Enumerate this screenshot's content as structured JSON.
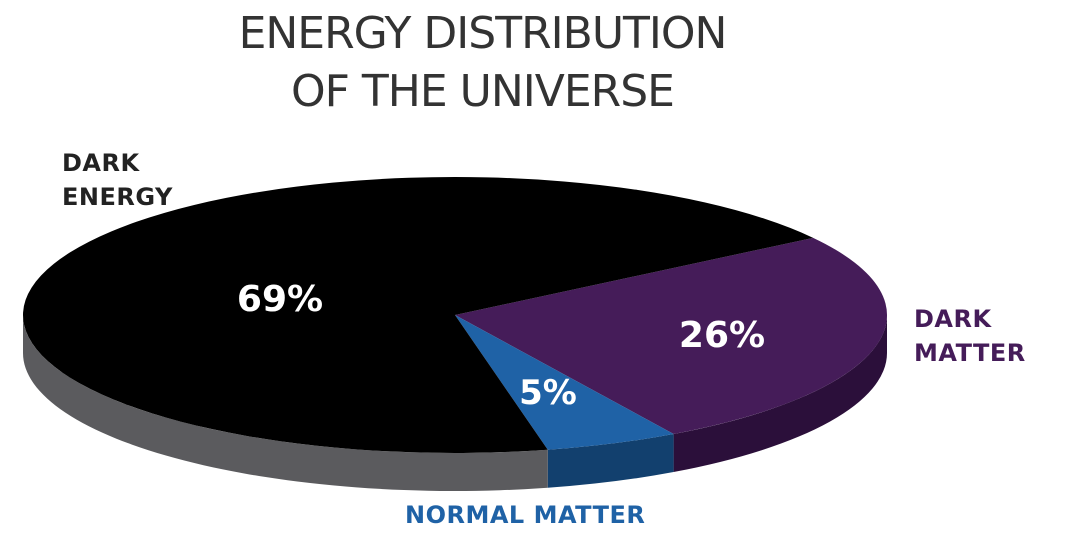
{
  "chart_data": {
    "type": "pie",
    "title_lines": [
      "ENERGY DISTRIBUTION",
      "OF THE UNIVERSE"
    ],
    "slices": [
      {
        "label_lines": [
          "DARK",
          "ENERGY"
        ],
        "value": 69,
        "value_label": "69%",
        "color": "#000000",
        "side_color": "#5b5b5e",
        "label_color": "#222222"
      },
      {
        "label_lines": [
          "DARK",
          "MATTER"
        ],
        "value": 26,
        "value_label": "26%",
        "color": "#451c59",
        "side_color": "#2b0f3a",
        "label_color": "#451c59"
      },
      {
        "label_lines": [
          "NORMAL MATTER"
        ],
        "value": 5,
        "value_label": "5%",
        "color": "#1f62a6",
        "side_color": "#12406e",
        "label_color": "#1f62a6"
      }
    ],
    "style": "3d-tilted-pie"
  }
}
